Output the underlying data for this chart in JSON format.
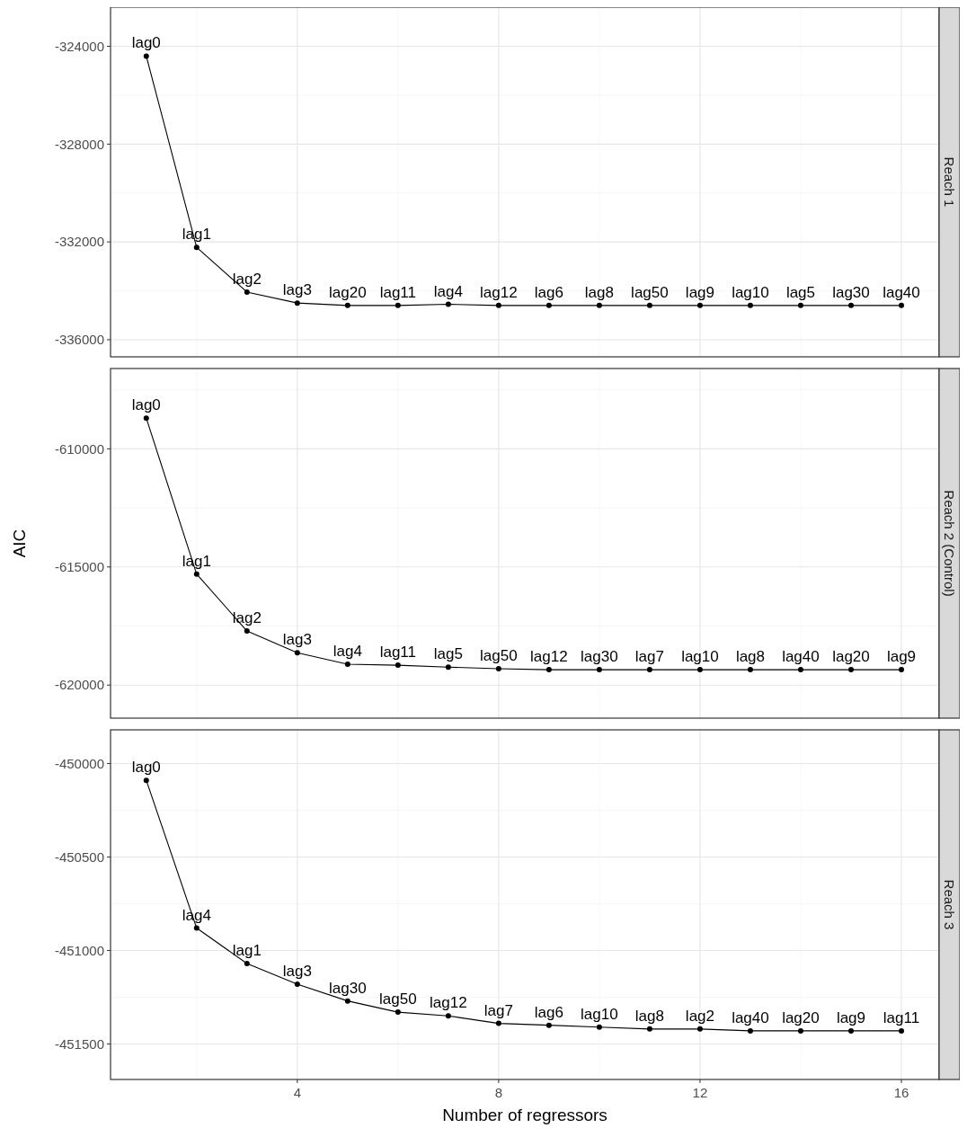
{
  "chart_data": [
    {
      "type": "line",
      "title": "Reach 1",
      "x": [
        1,
        2,
        3,
        4,
        5,
        6,
        7,
        8,
        9,
        10,
        11,
        12,
        13,
        14,
        15,
        16
      ],
      "color": "#000000",
      "marker": "circle",
      "grid": true,
      "tick_labels": "y",
      "values": [
        -324400,
        -332220,
        -334050,
        -334500,
        -334600,
        -334600,
        -334550,
        -334600,
        -334600,
        -334600,
        -334600,
        -334600,
        -334600,
        -334600,
        -334600,
        -334600
      ],
      "xlim": [
        0.29,
        16.75
      ],
      "xticks": [
        4,
        8,
        12,
        16
      ],
      "ylim": [
        -336700,
        -322400
      ],
      "yticks": [
        -336000,
        -332000,
        -328000,
        -324000
      ],
      "annotations": [
        {
          "text": "lag0",
          "x": 1,
          "y": -324400
        },
        {
          "text": "lag1",
          "x": 2,
          "y": -332220
        },
        {
          "text": "lag2",
          "x": 3,
          "y": -334050
        },
        {
          "text": "lag3",
          "x": 4,
          "y": -334500
        },
        {
          "text": "lag20",
          "x": 5,
          "y": -334600
        },
        {
          "text": "lag11",
          "x": 6,
          "y": -334600
        },
        {
          "text": "lag4",
          "x": 7,
          "y": -334550
        },
        {
          "text": "lag12",
          "x": 8,
          "y": -334600
        },
        {
          "text": "lag6",
          "x": 9,
          "y": -334600
        },
        {
          "text": "lag8",
          "x": 10,
          "y": -334600
        },
        {
          "text": "lag50",
          "x": 11,
          "y": -334600
        },
        {
          "text": "lag9",
          "x": 12,
          "y": -334600
        },
        {
          "text": "lag10",
          "x": 13,
          "y": -334600
        },
        {
          "text": "lag5",
          "x": 14,
          "y": -334600
        },
        {
          "text": "lag30",
          "x": 15,
          "y": -334600
        },
        {
          "text": "lag40",
          "x": 16,
          "y": -334600
        }
      ]
    },
    {
      "type": "line",
      "title": "Reach 2 (Control)",
      "ylabel": "AIC",
      "x": [
        1,
        2,
        3,
        4,
        5,
        6,
        7,
        8,
        9,
        10,
        11,
        12,
        13,
        14,
        15,
        16
      ],
      "color": "#000000",
      "marker": "circle",
      "grid": true,
      "tick_labels": "y",
      "values": [
        -608700,
        -615300,
        -617710,
        -618630,
        -619120,
        -619160,
        -619240,
        -619310,
        -619350,
        -619350,
        -619350,
        -619350,
        -619350,
        -619350,
        -619350,
        -619350
      ],
      "xlim": [
        0.29,
        16.75
      ],
      "xticks": [
        4,
        8,
        12,
        16
      ],
      "ylim": [
        -621400,
        -606600
      ],
      "yticks": [
        -620000,
        -615000,
        -610000
      ],
      "annotations": [
        {
          "text": "lag0",
          "x": 1,
          "y": -608700
        },
        {
          "text": "lag1",
          "x": 2,
          "y": -615300
        },
        {
          "text": "lag2",
          "x": 3,
          "y": -617710
        },
        {
          "text": "lag3",
          "x": 4,
          "y": -618630
        },
        {
          "text": "lag4",
          "x": 5,
          "y": -619120
        },
        {
          "text": "lag11",
          "x": 6,
          "y": -619160
        },
        {
          "text": "lag5",
          "x": 7,
          "y": -619240
        },
        {
          "text": "lag50",
          "x": 8,
          "y": -619310
        },
        {
          "text": "lag12",
          "x": 9,
          "y": -619350
        },
        {
          "text": "lag30",
          "x": 10,
          "y": -619350
        },
        {
          "text": "lag7",
          "x": 11,
          "y": -619350
        },
        {
          "text": "lag10",
          "x": 12,
          "y": -619350
        },
        {
          "text": "lag8",
          "x": 13,
          "y": -619350
        },
        {
          "text": "lag40",
          "x": 14,
          "y": -619350
        },
        {
          "text": "lag20",
          "x": 15,
          "y": -619350
        },
        {
          "text": "lag9",
          "x": 16,
          "y": -619350
        }
      ]
    },
    {
      "type": "line",
      "title": "Reach 3",
      "xlabel": "Number of regressors",
      "x": [
        1,
        2,
        3,
        4,
        5,
        6,
        7,
        8,
        9,
        10,
        11,
        12,
        13,
        14,
        15,
        16
      ],
      "color": "#000000",
      "marker": "circle",
      "grid": true,
      "values": [
        -450090,
        -450880,
        -451070,
        -451180,
        -451270,
        -451330,
        -451350,
        -451390,
        -451400,
        -451410,
        -451420,
        -451420,
        -451430,
        -451430,
        -451430,
        -451430
      ],
      "xlim": [
        0.29,
        16.75
      ],
      "xticks": [
        4,
        8,
        12,
        16
      ],
      "ylim": [
        -451690,
        -449820
      ],
      "yticks": [
        -451500,
        -451000,
        -450500,
        -450000
      ],
      "annotations": [
        {
          "text": "lag0",
          "x": 1,
          "y": -450090
        },
        {
          "text": "lag4",
          "x": 2,
          "y": -450880
        },
        {
          "text": "lag1",
          "x": 3,
          "y": -451070
        },
        {
          "text": "lag3",
          "x": 4,
          "y": -451180
        },
        {
          "text": "lag30",
          "x": 5,
          "y": -451270
        },
        {
          "text": "lag50",
          "x": 6,
          "y": -451330
        },
        {
          "text": "lag12",
          "x": 7,
          "y": -451350
        },
        {
          "text": "lag7",
          "x": 8,
          "y": -451390
        },
        {
          "text": "lag6",
          "x": 9,
          "y": -451400
        },
        {
          "text": "lag10",
          "x": 10,
          "y": -451410
        },
        {
          "text": "lag8",
          "x": 11,
          "y": -451420
        },
        {
          "text": "lag2",
          "x": 12,
          "y": -451420
        },
        {
          "text": "lag40",
          "x": 13,
          "y": -451430
        },
        {
          "text": "lag20",
          "x": 14,
          "y": -451430
        },
        {
          "text": "lag9",
          "x": 15,
          "y": -451430
        },
        {
          "text": "lag11",
          "x": 16,
          "y": -451430
        }
      ]
    }
  ]
}
